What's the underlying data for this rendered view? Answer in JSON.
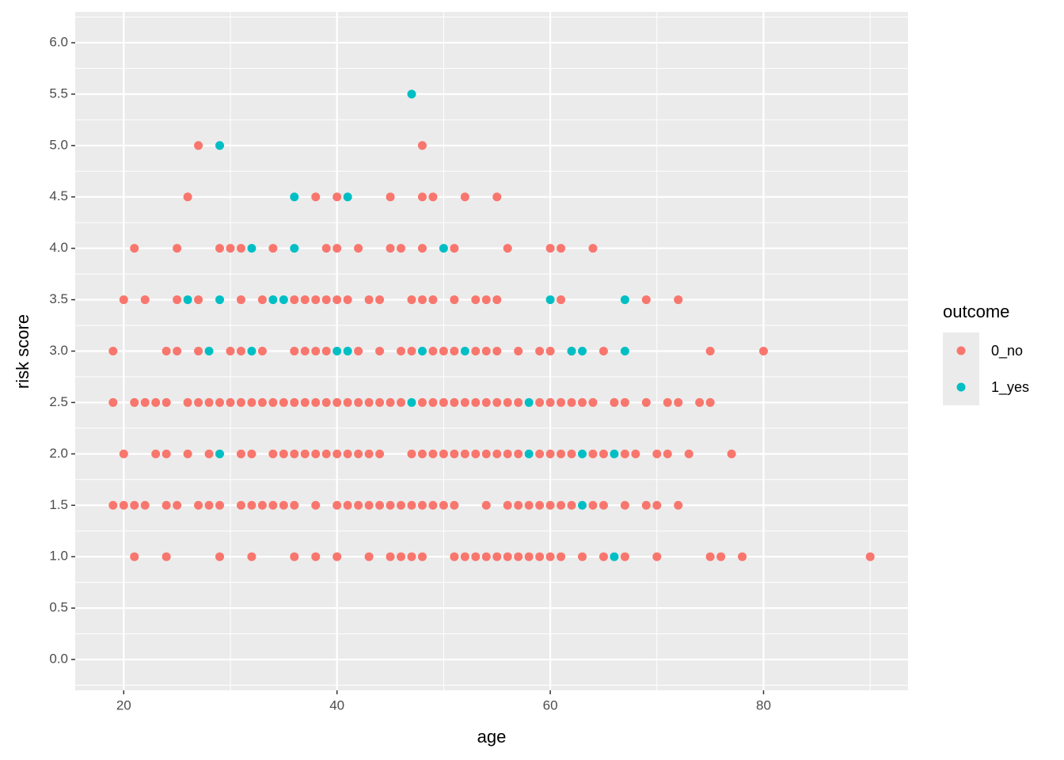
{
  "chart_data": {
    "type": "scatter",
    "xlabel": "age",
    "ylabel": "risk score",
    "legend_title": "outcome",
    "legend_position": "right",
    "xlim": [
      15.45,
      93.55
    ],
    "xticks": [
      20,
      40,
      60,
      80
    ],
    "x_minor_ticks": [
      30,
      50,
      70,
      90
    ],
    "ylim": [
      -0.3,
      6.3
    ],
    "yticks": [
      {
        "value": 0,
        "label": "0.0"
      },
      0.5,
      {
        "value": 1,
        "label": "1.0"
      },
      1.5,
      {
        "value": 2,
        "label": "2.0"
      },
      2.5,
      {
        "value": 3,
        "label": "3.0"
      },
      3.5,
      {
        "value": 4,
        "label": "4.0"
      },
      4.5,
      {
        "value": 5,
        "label": "5.0"
      },
      5.5,
      {
        "value": 6,
        "label": "6.0"
      }
    ],
    "y_minor_ticks": [
      -0.25,
      0.25,
      0.75,
      1.25,
      1.75,
      2.25,
      2.75,
      3.25,
      3.75,
      4.25,
      4.75,
      5.25,
      5.75,
      6.25
    ],
    "grid": true,
    "series": [
      {
        "name": "0_no",
        "color": "#F8766D",
        "x": [
          27,
          48,
          26,
          38,
          40,
          45,
          48,
          49,
          52,
          55,
          21,
          25,
          29,
          30,
          31,
          34,
          39,
          40,
          42,
          45,
          46,
          48,
          51,
          56,
          60,
          61,
          64,
          20,
          22,
          25,
          27,
          31,
          33,
          36,
          37,
          38,
          39,
          40,
          41,
          43,
          44,
          47,
          48,
          49,
          51,
          53,
          54,
          55,
          61,
          69,
          72,
          19,
          24,
          25,
          27,
          30,
          31,
          33,
          36,
          37,
          38,
          39,
          42,
          44,
          46,
          47,
          49,
          50,
          51,
          53,
          54,
          55,
          57,
          59,
          60,
          62,
          65,
          75,
          80,
          19,
          21,
          22,
          23,
          24,
          26,
          27,
          28,
          29,
          30,
          31,
          32,
          33,
          34,
          35,
          36,
          37,
          38,
          39,
          40,
          41,
          42,
          43,
          44,
          45,
          46,
          48,
          49,
          50,
          51,
          52,
          53,
          54,
          55,
          56,
          57,
          59,
          60,
          61,
          62,
          63,
          64,
          66,
          67,
          69,
          71,
          72,
          74,
          75,
          20,
          23,
          24,
          26,
          28,
          31,
          32,
          34,
          35,
          36,
          37,
          38,
          39,
          40,
          41,
          42,
          43,
          44,
          47,
          48,
          49,
          50,
          51,
          52,
          53,
          54,
          55,
          56,
          57,
          59,
          60,
          61,
          62,
          64,
          65,
          67,
          68,
          70,
          71,
          73,
          77,
          19,
          20,
          21,
          22,
          24,
          25,
          27,
          28,
          29,
          31,
          32,
          33,
          34,
          35,
          36,
          38,
          40,
          41,
          42,
          43,
          44,
          45,
          46,
          47,
          48,
          49,
          50,
          51,
          54,
          56,
          57,
          58,
          59,
          60,
          61,
          62,
          64,
          65,
          67,
          69,
          70,
          72,
          21,
          24,
          29,
          32,
          36,
          38,
          40,
          43,
          45,
          46,
          47,
          48,
          51,
          52,
          53,
          54,
          55,
          56,
          57,
          58,
          59,
          60,
          61,
          63,
          65,
          67,
          70,
          75,
          76,
          78,
          90
        ],
        "values": [
          5,
          5,
          4.5,
          4.5,
          4.5,
          4.5,
          4.5,
          4.5,
          4.5,
          4.5,
          4,
          4,
          4,
          4,
          4,
          4,
          4,
          4,
          4,
          4,
          4,
          4,
          4,
          4,
          4,
          4,
          4,
          3.5,
          3.5,
          3.5,
          3.5,
          3.5,
          3.5,
          3.5,
          3.5,
          3.5,
          3.5,
          3.5,
          3.5,
          3.5,
          3.5,
          3.5,
          3.5,
          3.5,
          3.5,
          3.5,
          3.5,
          3.5,
          3.5,
          3.5,
          3.5,
          3,
          3,
          3,
          3,
          3,
          3,
          3,
          3,
          3,
          3,
          3,
          3,
          3,
          3,
          3,
          3,
          3,
          3,
          3,
          3,
          3,
          3,
          3,
          3,
          3,
          3,
          3,
          3,
          2.5,
          2.5,
          2.5,
          2.5,
          2.5,
          2.5,
          2.5,
          2.5,
          2.5,
          2.5,
          2.5,
          2.5,
          2.5,
          2.5,
          2.5,
          2.5,
          2.5,
          2.5,
          2.5,
          2.5,
          2.5,
          2.5,
          2.5,
          2.5,
          2.5,
          2.5,
          2.5,
          2.5,
          2.5,
          2.5,
          2.5,
          2.5,
          2.5,
          2.5,
          2.5,
          2.5,
          2.5,
          2.5,
          2.5,
          2.5,
          2.5,
          2.5,
          2.5,
          2.5,
          2.5,
          2.5,
          2.5,
          2.5,
          2.5,
          2,
          2,
          2,
          2,
          2,
          2,
          2,
          2,
          2,
          2,
          2,
          2,
          2,
          2,
          2,
          2,
          2,
          2,
          2,
          2,
          2,
          2,
          2,
          2,
          2,
          2,
          2,
          2,
          2,
          2,
          2,
          2,
          2,
          2,
          2,
          2,
          2,
          2,
          2,
          2,
          2,
          1.5,
          1.5,
          1.5,
          1.5,
          1.5,
          1.5,
          1.5,
          1.5,
          1.5,
          1.5,
          1.5,
          1.5,
          1.5,
          1.5,
          1.5,
          1.5,
          1.5,
          1.5,
          1.5,
          1.5,
          1.5,
          1.5,
          1.5,
          1.5,
          1.5,
          1.5,
          1.5,
          1.5,
          1.5,
          1.5,
          1.5,
          1.5,
          1.5,
          1.5,
          1.5,
          1.5,
          1.5,
          1.5,
          1.5,
          1.5,
          1.5,
          1.5,
          1,
          1,
          1,
          1,
          1,
          1,
          1,
          1,
          1,
          1,
          1,
          1,
          1,
          1,
          1,
          1,
          1,
          1,
          1,
          1,
          1,
          1,
          1,
          1,
          1,
          1,
          1,
          1,
          1,
          1,
          1
        ]
      },
      {
        "name": "1_yes",
        "color": "#00BFC4",
        "x": [
          47,
          29,
          36,
          41,
          32,
          36,
          50,
          26,
          29,
          34,
          35,
          60,
          67,
          28,
          32,
          40,
          41,
          48,
          52,
          62,
          63,
          67,
          47,
          58,
          29,
          58,
          63,
          66,
          63,
          66
        ],
        "values": [
          5.5,
          5,
          4.5,
          4.5,
          4,
          4,
          4,
          3.5,
          3.5,
          3.5,
          3.5,
          3.5,
          3.5,
          3,
          3,
          3,
          3,
          3,
          3,
          3,
          3,
          3,
          2.5,
          2.5,
          2,
          2,
          2,
          2,
          1.5,
          1
        ]
      }
    ]
  }
}
